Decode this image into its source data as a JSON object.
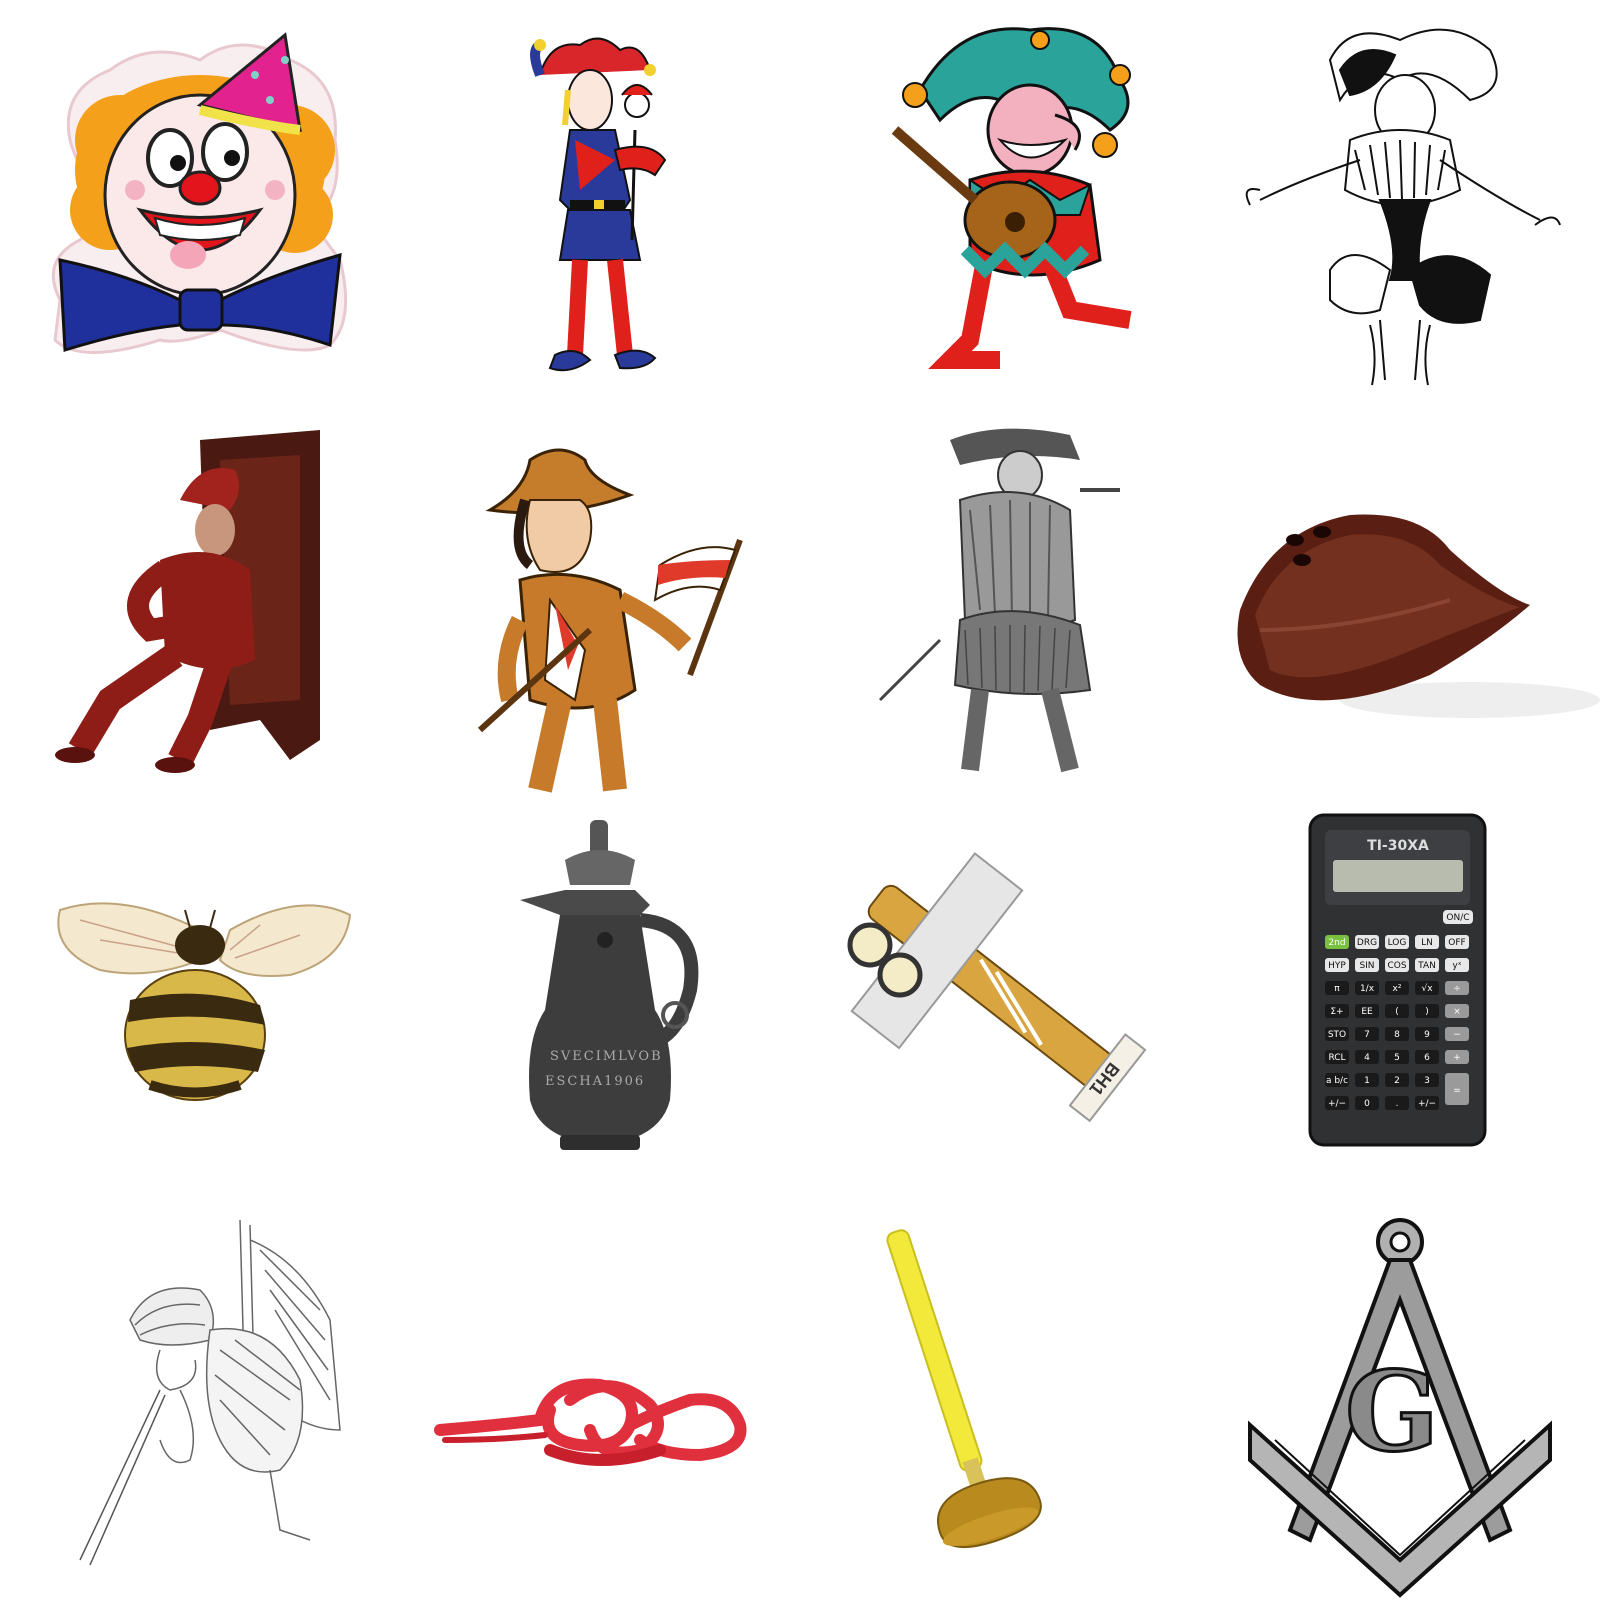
{
  "grid": {
    "rows": 4,
    "columns": 4
  },
  "tiles": [
    {
      "row": 1,
      "col": 1,
      "icon": "clown-face-icon"
    },
    {
      "row": 1,
      "col": 2,
      "icon": "jester-with-marotte-icon"
    },
    {
      "row": 1,
      "col": 3,
      "icon": "jester-playing-lute-icon"
    },
    {
      "row": 1,
      "col": 4,
      "icon": "harlequin-ink-drawing-icon"
    },
    {
      "row": 2,
      "col": 1,
      "icon": "jester-seated-throne-icon"
    },
    {
      "row": 2,
      "col": 2,
      "icon": "boy-with-flag-icon"
    },
    {
      "row": 2,
      "col": 3,
      "icon": "highland-soldier-engraving-icon"
    },
    {
      "row": 2,
      "col": 4,
      "icon": "wooden-pen-holder-icon"
    },
    {
      "row": 3,
      "col": 1,
      "icon": "bumblebee-icon"
    },
    {
      "row": 3,
      "col": 2,
      "icon": "pewter-pitcher-icon"
    },
    {
      "row": 3,
      "col": 3,
      "icon": "toy-airplane-icon"
    },
    {
      "row": 3,
      "col": 4,
      "icon": "scientific-calculator-icon"
    },
    {
      "row": 4,
      "col": 1,
      "icon": "person-sketch-icon"
    },
    {
      "row": 4,
      "col": 2,
      "icon": "rope-knot-icon"
    },
    {
      "row": 4,
      "col": 3,
      "icon": "plunger-icon"
    },
    {
      "row": 4,
      "col": 4,
      "icon": "square-and-compasses-icon"
    }
  ],
  "pitcher": {
    "inscription_1": "SVECIMLVOB",
    "inscription_2": "ESCHA1906"
  },
  "airplane": {
    "tail_text": "BH1"
  },
  "calculator": {
    "brand": "TI-30XA",
    "keys": {
      "onc": "ON/C",
      "second": "2nd",
      "drg": "DRG",
      "log": "LOG",
      "ln": "LN",
      "off": "OFF",
      "hyp": "HYP",
      "sin": "SIN",
      "cos": "COS",
      "tan": "TAN",
      "yx": "yˣ",
      "pi": "π",
      "inv": "1/x",
      "sq": "x²",
      "sqrt": "√x",
      "div": "÷",
      "sigma": "Σ+",
      "ee": "EE",
      "lp": "(",
      "rp": ")",
      "mul": "×",
      "sto": "STO",
      "k7": "7",
      "k8": "8",
      "k9": "9",
      "sub": "−",
      "rcl": "RCL",
      "k4": "4",
      "k5": "5",
      "k6": "6",
      "add": "+",
      "frac": "a b/c",
      "k1": "1",
      "k2": "2",
      "k3": "3",
      "eq": "=",
      "neg": "+/−",
      "k0": "0",
      "dot": ".",
      "ent": "+/−"
    }
  },
  "masonic": {
    "letter": "G"
  },
  "colors": {
    "background": "#ffffff",
    "clown_hair": "#f5a01a",
    "clown_hat": "#e2238f",
    "clown_bow": "#1f2f9c",
    "jester_teal": "#2aa39a",
    "jester_red": "#e0201b",
    "bee_yellow": "#d9b84a",
    "rope_red": "#e0303d",
    "plunger_yellow": "#f2e93a",
    "compass_gray": "#9c9c9c"
  }
}
